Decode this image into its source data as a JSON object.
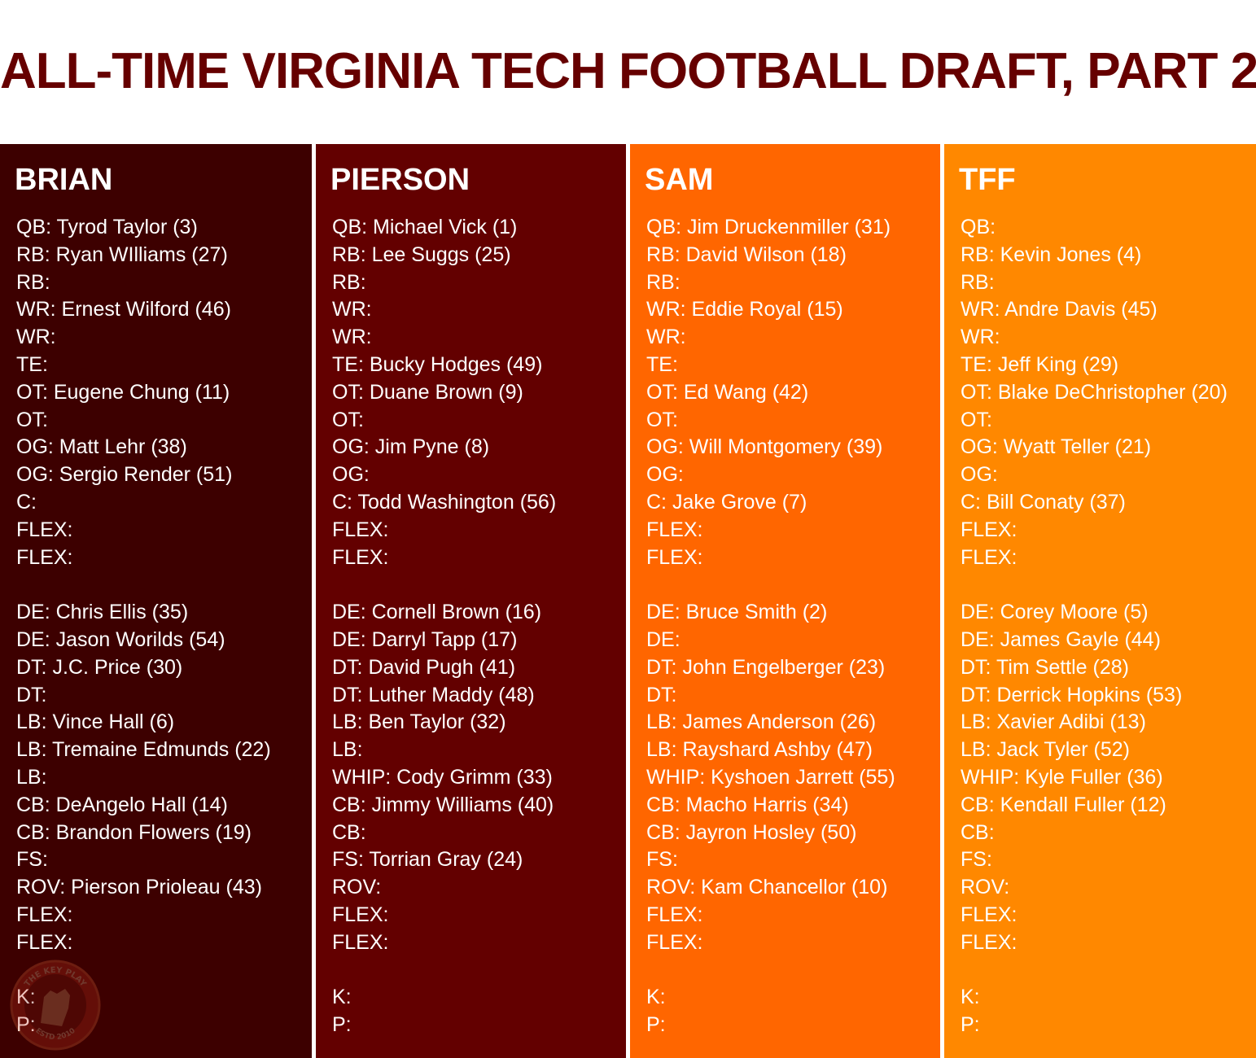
{
  "title": "ALL-TIME VIRGINIA TECH FOOTBALL DRAFT, PART 2",
  "colors": {
    "title": "#660000",
    "brian": "#3d0000",
    "pierson": "#630000",
    "sam": "#ff6600",
    "tff": "#ff8800"
  },
  "columns": [
    {
      "name": "BRIAN",
      "offense": [
        "QB: Tyrod Taylor (3)",
        "RB: Ryan WIlliams (27)",
        "RB:",
        "WR: Ernest Wilford (46)",
        "WR:",
        "TE:",
        "OT: Eugene Chung (11)",
        "OT:",
        "OG: Matt Lehr (38)",
        "OG: Sergio Render (51)",
        "C:",
        "FLEX:",
        "FLEX:"
      ],
      "defense": [
        "DE: Chris Ellis (35)",
        "DE: Jason Worilds (54)",
        "DT: J.C. Price (30)",
        "DT:",
        "LB: Vince Hall (6)",
        "LB: Tremaine Edmunds (22)",
        "LB:",
        "CB: DeAngelo Hall (14)",
        "CB: Brandon Flowers (19)",
        "FS:",
        "ROV: Pierson Prioleau (43)",
        "FLEX:",
        "FLEX:"
      ],
      "special": [
        "K:",
        "P:"
      ]
    },
    {
      "name": "PIERSON",
      "offense": [
        "QB: Michael Vick (1)",
        "RB: Lee Suggs (25)",
        "RB:",
        "WR:",
        "WR:",
        "TE: Bucky Hodges (49)",
        "OT: Duane Brown (9)",
        "OT:",
        "OG: Jim Pyne (8)",
        "OG:",
        "C: Todd Washington (56)",
        "FLEX:",
        "FLEX:"
      ],
      "defense": [
        "DE: Cornell Brown (16)",
        "DE: Darryl Tapp (17)",
        "DT: David Pugh (41)",
        "DT: Luther Maddy (48)",
        "LB: Ben Taylor (32)",
        "LB:",
        "WHIP: Cody Grimm (33)",
        "CB: Jimmy Williams (40)",
        "CB:",
        "FS: Torrian Gray (24)",
        "ROV:",
        "FLEX:",
        "FLEX:"
      ],
      "special": [
        "K:",
        "P:"
      ]
    },
    {
      "name": "SAM",
      "offense": [
        "QB: Jim Druckenmiller (31)",
        "RB: David Wilson (18)",
        "RB:",
        "WR: Eddie Royal (15)",
        "WR:",
        "TE:",
        "OT: Ed Wang (42)",
        "OT:",
        "OG: Will Montgomery (39)",
        "OG:",
        "C: Jake Grove (7)",
        "FLEX:",
        "FLEX:"
      ],
      "defense": [
        "DE: Bruce Smith (2)",
        "DE:",
        "DT: John Engelberger (23)",
        "DT:",
        "LB: James Anderson (26)",
        "LB: Rayshard Ashby (47)",
        "WHIP: Kyshoen Jarrett (55)",
        "CB: Macho Harris (34)",
        "CB: Jayron Hosley (50)",
        "FS:",
        "ROV: Kam Chancellor (10)",
        "FLEX:",
        "FLEX:"
      ],
      "special": [
        "K:",
        "P:"
      ]
    },
    {
      "name": "TFF",
      "offense": [
        "QB:",
        "RB: Kevin Jones (4)",
        "RB:",
        "WR: Andre Davis (45)",
        "WR:",
        "TE: Jeff King (29)",
        "OT: Blake DeChristopher (20)",
        "OT:",
        "OG: Wyatt Teller (21)",
        "OG:",
        "C: Bill Conaty (37)",
        "FLEX:",
        "FLEX:"
      ],
      "defense": [
        "DE: Corey Moore (5)",
        "DE: James Gayle (44)",
        "DT: Tim Settle (28)",
        "DT: Derrick Hopkins (53)",
        "LB: Xavier Adibi (13)",
        "LB: Jack Tyler (52)",
        "WHIP: Kyle Fuller (36)",
        "CB: Kendall Fuller (12)",
        "CB:",
        "FS:",
        "ROV:",
        "FLEX:",
        "FLEX:"
      ],
      "special": [
        "K:",
        "P:"
      ]
    }
  ],
  "logo": {
    "icon": "the-key-play-logo-icon",
    "text_top": "THE KEY PLAY",
    "text_bottom": "ESTD 2010"
  }
}
